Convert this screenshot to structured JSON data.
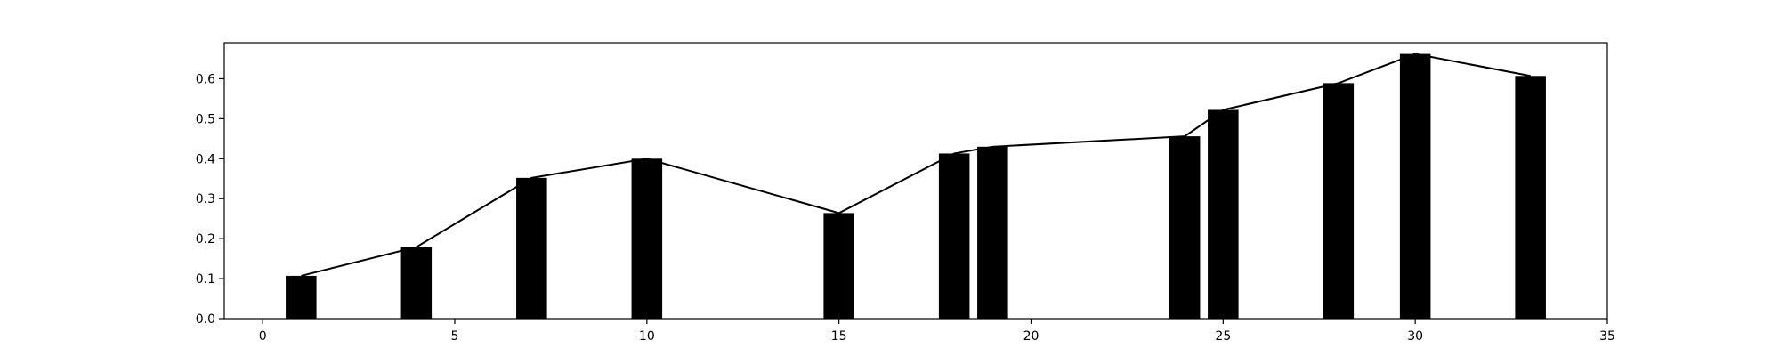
{
  "chart_data": {
    "type": "bar",
    "title": "",
    "xlabel": "",
    "ylabel": "",
    "xlim": [
      -1,
      35
    ],
    "ylim": [
      0,
      0.69
    ],
    "grid": false,
    "bar_width": 0.8,
    "bar_color": "#000000",
    "line_color": "#000000",
    "x_ticks": [
      0,
      5,
      10,
      15,
      20,
      25,
      30,
      35
    ],
    "x_tick_labels": [
      "0",
      "5",
      "10",
      "15",
      "20",
      "25",
      "30",
      "35"
    ],
    "y_ticks": [
      0.0,
      0.1,
      0.2,
      0.3,
      0.4,
      0.5,
      0.6
    ],
    "y_tick_labels": [
      "0.0",
      "0.1",
      "0.2",
      "0.3",
      "0.4",
      "0.5",
      "0.6"
    ],
    "series": [
      {
        "type": "bar",
        "x": [
          1,
          4,
          7,
          10,
          15,
          18,
          19,
          24,
          25,
          28,
          30,
          33
        ],
        "values": [
          0.107,
          0.179,
          0.352,
          0.4,
          0.264,
          0.413,
          0.43,
          0.456,
          0.522,
          0.589,
          0.662,
          0.607
        ]
      },
      {
        "type": "line",
        "x": [
          1,
          4,
          7,
          10,
          15,
          18,
          19,
          24,
          25,
          28,
          30,
          33
        ],
        "values": [
          0.107,
          0.179,
          0.352,
          0.4,
          0.264,
          0.413,
          0.43,
          0.456,
          0.522,
          0.589,
          0.662,
          0.607
        ]
      }
    ]
  }
}
